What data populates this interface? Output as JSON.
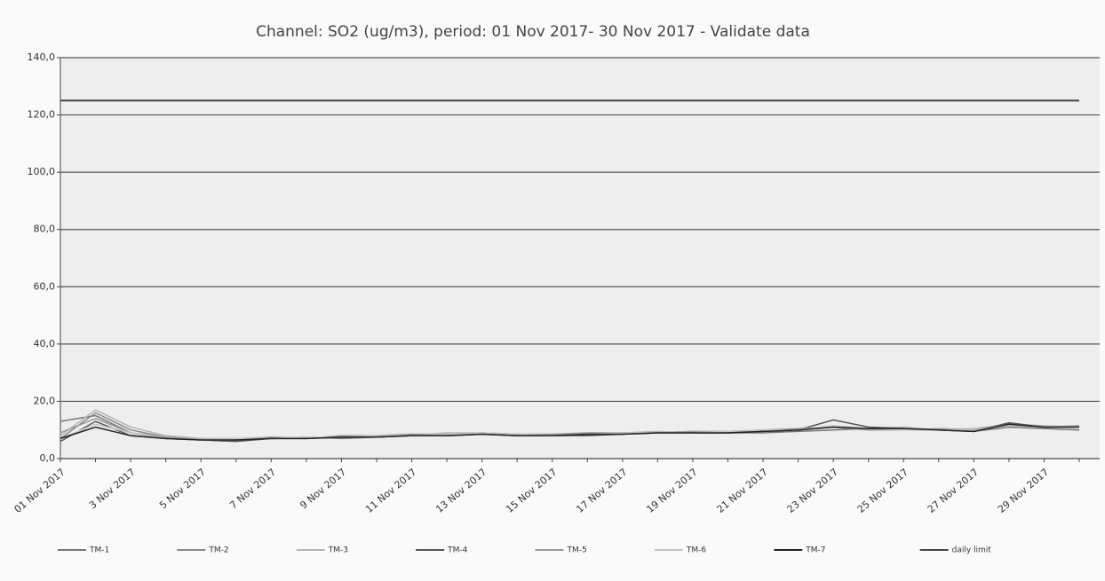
{
  "chart_data": {
    "type": "line",
    "title": "Channel: SO2 (ug/m3), period: 01 Nov 2017- 30 Nov 2017 - Validate data",
    "categories": [
      "01 Nov 2017",
      null,
      "3 Nov 2017",
      null,
      "5 Nov 2017",
      null,
      "7 Nov 2017",
      null,
      "9 Nov 2017",
      null,
      "11 Nov 2017",
      null,
      "13 Nov 2017",
      null,
      "15 Nov 2017",
      null,
      "17 Nov 2017",
      null,
      "19 Nov 2017",
      null,
      "21 Nov 2017",
      null,
      "23 Nov 2017",
      null,
      "25 Nov 2017",
      null,
      "27 Nov 2017",
      null,
      "29 Nov 2017",
      null
    ],
    "series": [
      {
        "name": "TM-1",
        "color": "#777777",
        "values": [
          13,
          15,
          9,
          7,
          6.5,
          6.5,
          7,
          7.5,
          7,
          7.5,
          8,
          8,
          8.5,
          8,
          8,
          8.5,
          8.5,
          9,
          9,
          9,
          9,
          9.5,
          10,
          10.5,
          10,
          10,
          9.5,
          11,
          10.5,
          10
        ]
      },
      {
        "name": "TM-2",
        "color": "#8a8a8a",
        "values": [
          7,
          16,
          10,
          7.5,
          7,
          6.5,
          7.5,
          7,
          7.5,
          8,
          8.5,
          8,
          9,
          8.5,
          8,
          8.5,
          9,
          9,
          9.5,
          9,
          9.5,
          10,
          11,
          10,
          10.5,
          10,
          10,
          12,
          11,
          11
        ]
      },
      {
        "name": "TM-3",
        "color": "#b5b5b5",
        "values": [
          8,
          17,
          11,
          8,
          7,
          7,
          7.5,
          7,
          8,
          8,
          8,
          9,
          9,
          8,
          8.5,
          9,
          9,
          9.5,
          9,
          9.5,
          10,
          10,
          11,
          10.5,
          11,
          10,
          10.5,
          12,
          11.5,
          11
        ]
      },
      {
        "name": "TM-4",
        "color": "#555555",
        "values": [
          6,
          13,
          8,
          7,
          6.5,
          6,
          7,
          7,
          7.5,
          7.5,
          8,
          8.5,
          8.5,
          8,
          8,
          8,
          8.5,
          9,
          9,
          9,
          9.5,
          10,
          13.5,
          11,
          10.5,
          10,
          9.5,
          12.5,
          11,
          11
        ]
      },
      {
        "name": "TM-5",
        "color": "#9a9a9a",
        "values": [
          9,
          14,
          9,
          7.5,
          6.5,
          6.5,
          7.5,
          7,
          8,
          8,
          8.5,
          8.5,
          9,
          8.5,
          8.5,
          9,
          9,
          9,
          9.5,
          9.5,
          10,
          10.5,
          11,
          10,
          10,
          10.5,
          10,
          12,
          11,
          11.5
        ]
      },
      {
        "name": "TM-6",
        "color": "#c4c4c4",
        "values": [
          7,
          12,
          9,
          7,
          6.5,
          7,
          7,
          7.5,
          7.5,
          8,
          8,
          8.5,
          9,
          8.5,
          8,
          8.5,
          9,
          9,
          9,
          9.5,
          10,
          10,
          11.5,
          10.5,
          10,
          10,
          10,
          11.5,
          11,
          11
        ]
      },
      {
        "name": "TM-7",
        "color": "#222222",
        "values": [
          7,
          11,
          8,
          7,
          6.5,
          6.5,
          7,
          7,
          7.5,
          7.5,
          8,
          8,
          8.5,
          8,
          8,
          8.5,
          8.5,
          9,
          9,
          9,
          9.5,
          10,
          11,
          10.5,
          10.5,
          10,
          9.5,
          12,
          11,
          11
        ]
      },
      {
        "name": "daily limit",
        "color": "#444444",
        "values": [
          125,
          125,
          125,
          125,
          125,
          125,
          125,
          125,
          125,
          125,
          125,
          125,
          125,
          125,
          125,
          125,
          125,
          125,
          125,
          125,
          125,
          125,
          125,
          125,
          125,
          125,
          125,
          125,
          125,
          125
        ]
      }
    ],
    "ylim": [
      0,
      140
    ],
    "yticks": [
      {
        "value": 0,
        "label": "0,0"
      },
      {
        "value": 20,
        "label": "20,0"
      },
      {
        "value": 40,
        "label": "40,0"
      },
      {
        "value": 60,
        "label": "60,0"
      },
      {
        "value": 80,
        "label": "80,0"
      },
      {
        "value": 100,
        "label": "100,0"
      },
      {
        "value": 120,
        "label": "120,0"
      },
      {
        "value": 140,
        "label": "140,0"
      }
    ],
    "grid": true
  }
}
